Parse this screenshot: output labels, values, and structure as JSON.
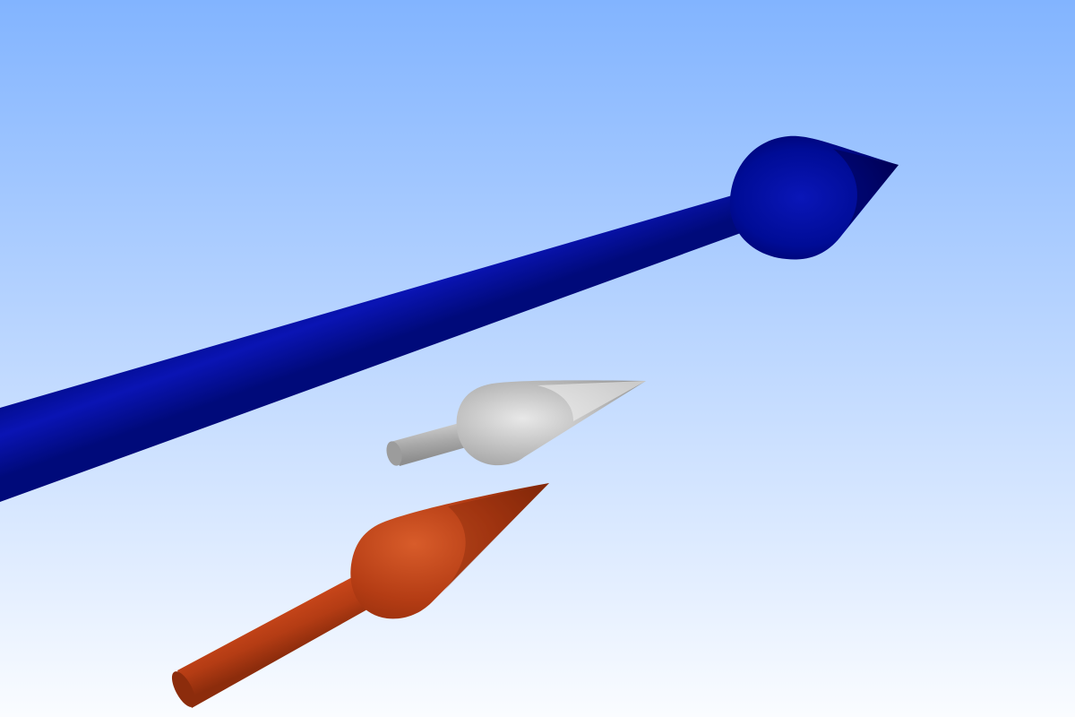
{
  "scene": {
    "background": {
      "top_color": "#82b4ff",
      "bottom_color": "#fafcff"
    },
    "arrows": [
      {
        "name": "blue-arrow",
        "color": "#000c96",
        "highlight": "#0a14b4",
        "shadow": "#000050"
      },
      {
        "name": "gray-arrow",
        "color": "#b9b9b9",
        "highlight": "#e0e0e0",
        "shadow": "#8c8c8c"
      },
      {
        "name": "orange-arrow",
        "color": "#b43c14",
        "highlight": "#d25a28",
        "shadow": "#7a2408"
      }
    ]
  }
}
